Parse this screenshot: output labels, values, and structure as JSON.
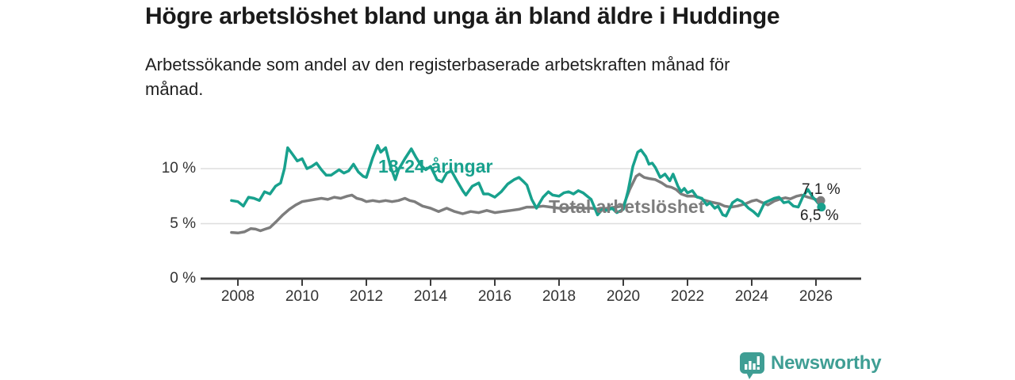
{
  "header": {
    "title": "Högre arbetslöshet bland unga än bland äldre i Huddinge",
    "subtitle": "Arbetssökande som andel av den registerbaserade arbetskraften månad för månad.",
    "subtitle_lines": [
      "Arbetssökande som andel av den registerbaserade arbetskraften månad för",
      "månad."
    ]
  },
  "chart_data": {
    "type": "line",
    "title": "Högre arbetslöshet bland unga än bland äldre i Huddinge",
    "subtitle": "Arbetssökande som andel av den registerbaserade arbetskraften månad för månad.",
    "xlabel": "",
    "ylabel": "",
    "grid": "horizontal",
    "legend_position": "inline-labels",
    "xlim": [
      2007.7,
      2026.6
    ],
    "ylim": [
      0,
      12.7
    ],
    "x_ticks": [
      2008,
      2010,
      2012,
      2014,
      2016,
      2018,
      2020,
      2022,
      2024,
      2026
    ],
    "y_ticks": [
      {
        "value": 0,
        "label": "0 %"
      },
      {
        "value": 5,
        "label": "5 %"
      },
      {
        "value": 10,
        "label": "10 %"
      }
    ],
    "colors": {
      "youth": "#18a18d",
      "total": "#7d7d7d",
      "grid": "#dedede",
      "axis": "#3c3c3c"
    },
    "series": [
      {
        "name": "18-24-åringar",
        "color": "#18a18d",
        "end_label": "6,5 %",
        "end_value": 6.5,
        "points": [
          [
            2007.8,
            7.1
          ],
          [
            2008,
            7.0
          ],
          [
            2008.17,
            6.6
          ],
          [
            2008.33,
            7.4
          ],
          [
            2008.5,
            7.3
          ],
          [
            2008.67,
            7.1
          ],
          [
            2008.83,
            7.9
          ],
          [
            2009,
            7.7
          ],
          [
            2009.17,
            8.4
          ],
          [
            2009.33,
            8.7
          ],
          [
            2009.45,
            10.0
          ],
          [
            2009.55,
            11.9
          ],
          [
            2009.7,
            11.3
          ],
          [
            2009.85,
            10.7
          ],
          [
            2010,
            10.9
          ],
          [
            2010.15,
            10.0
          ],
          [
            2010.3,
            10.2
          ],
          [
            2010.45,
            10.5
          ],
          [
            2010.6,
            9.9
          ],
          [
            2010.75,
            9.4
          ],
          [
            2010.9,
            9.4
          ],
          [
            2011,
            9.6
          ],
          [
            2011.15,
            9.9
          ],
          [
            2011.3,
            9.6
          ],
          [
            2011.45,
            9.8
          ],
          [
            2011.6,
            10.4
          ],
          [
            2011.75,
            9.7
          ],
          [
            2011.9,
            9.3
          ],
          [
            2012,
            9.2
          ],
          [
            2012.2,
            11.0
          ],
          [
            2012.35,
            12.1
          ],
          [
            2012.45,
            11.5
          ],
          [
            2012.6,
            11.9
          ],
          [
            2012.75,
            10.2
          ],
          [
            2012.9,
            9.0
          ],
          [
            2013,
            9.9
          ],
          [
            2013.2,
            10.9
          ],
          [
            2013.4,
            11.8
          ],
          [
            2013.55,
            11.0
          ],
          [
            2013.7,
            10.3
          ],
          [
            2013.85,
            9.9
          ],
          [
            2014,
            10.2
          ],
          [
            2014.2,
            9.0
          ],
          [
            2014.35,
            8.8
          ],
          [
            2014.5,
            9.6
          ],
          [
            2014.65,
            9.8
          ],
          [
            2014.8,
            9.0
          ],
          [
            2015,
            8.0
          ],
          [
            2015.1,
            7.6
          ],
          [
            2015.3,
            8.4
          ],
          [
            2015.5,
            8.7
          ],
          [
            2015.65,
            7.7
          ],
          [
            2015.8,
            7.7
          ],
          [
            2016,
            7.4
          ],
          [
            2016.2,
            7.9
          ],
          [
            2016.4,
            8.6
          ],
          [
            2016.6,
            9.0
          ],
          [
            2016.75,
            9.2
          ],
          [
            2016.9,
            8.8
          ],
          [
            2017,
            8.5
          ],
          [
            2017.15,
            7.2
          ],
          [
            2017.3,
            6.4
          ],
          [
            2017.5,
            7.4
          ],
          [
            2017.67,
            7.9
          ],
          [
            2017.8,
            7.6
          ],
          [
            2018,
            7.5
          ],
          [
            2018.15,
            7.8
          ],
          [
            2018.3,
            7.9
          ],
          [
            2018.45,
            7.7
          ],
          [
            2018.6,
            8.0
          ],
          [
            2018.75,
            7.8
          ],
          [
            2019,
            7.2
          ],
          [
            2019.2,
            5.8
          ],
          [
            2019.35,
            6.3
          ],
          [
            2019.5,
            6.2
          ],
          [
            2019.65,
            6.4
          ],
          [
            2019.8,
            6.0
          ],
          [
            2020,
            6.3
          ],
          [
            2020.15,
            8.0
          ],
          [
            2020.3,
            10.2
          ],
          [
            2020.45,
            11.5
          ],
          [
            2020.55,
            11.7
          ],
          [
            2020.7,
            11.1
          ],
          [
            2020.8,
            10.4
          ],
          [
            2020.9,
            10.5
          ],
          [
            2021,
            10.1
          ],
          [
            2021.15,
            9.2
          ],
          [
            2021.3,
            9.5
          ],
          [
            2021.45,
            8.9
          ],
          [
            2021.55,
            9.5
          ],
          [
            2021.7,
            8.4
          ],
          [
            2021.8,
            7.9
          ],
          [
            2021.9,
            8.2
          ],
          [
            2022,
            7.8
          ],
          [
            2022.15,
            8.0
          ],
          [
            2022.3,
            7.4
          ],
          [
            2022.45,
            7.3
          ],
          [
            2022.6,
            6.7
          ],
          [
            2022.7,
            6.9
          ],
          [
            2022.85,
            6.4
          ],
          [
            2022.95,
            6.6
          ],
          [
            2023.1,
            5.8
          ],
          [
            2023.2,
            5.7
          ],
          [
            2023.4,
            6.9
          ],
          [
            2023.55,
            7.2
          ],
          [
            2023.7,
            7.0
          ],
          [
            2023.9,
            6.4
          ],
          [
            2024.05,
            6.1
          ],
          [
            2024.2,
            5.7
          ],
          [
            2024.4,
            6.9
          ],
          [
            2024.55,
            7.1
          ],
          [
            2024.7,
            7.3
          ],
          [
            2024.85,
            7.4
          ],
          [
            2025,
            6.9
          ],
          [
            2025.15,
            7.0
          ],
          [
            2025.3,
            6.6
          ],
          [
            2025.45,
            6.5
          ],
          [
            2025.6,
            7.5
          ],
          [
            2025.75,
            8.1
          ],
          [
            2025.9,
            7.4
          ],
          [
            2026,
            7.1
          ],
          [
            2026.17,
            6.5
          ]
        ]
      },
      {
        "name": "Total arbetslöshet",
        "color": "#7d7d7d",
        "end_label": "7,1 %",
        "end_value": 7.1,
        "points": [
          [
            2007.8,
            4.2
          ],
          [
            2008,
            4.15
          ],
          [
            2008.2,
            4.25
          ],
          [
            2008.4,
            4.55
          ],
          [
            2008.55,
            4.5
          ],
          [
            2008.7,
            4.35
          ],
          [
            2008.85,
            4.5
          ],
          [
            2009,
            4.65
          ],
          [
            2009.2,
            5.2
          ],
          [
            2009.4,
            5.8
          ],
          [
            2009.6,
            6.3
          ],
          [
            2009.8,
            6.7
          ],
          [
            2010,
            7.0
          ],
          [
            2010.2,
            7.1
          ],
          [
            2010.4,
            7.2
          ],
          [
            2010.6,
            7.3
          ],
          [
            2010.8,
            7.2
          ],
          [
            2011,
            7.4
          ],
          [
            2011.2,
            7.3
          ],
          [
            2011.4,
            7.5
          ],
          [
            2011.55,
            7.6
          ],
          [
            2011.7,
            7.3
          ],
          [
            2011.85,
            7.2
          ],
          [
            2012,
            7.0
          ],
          [
            2012.2,
            7.1
          ],
          [
            2012.4,
            7.0
          ],
          [
            2012.6,
            7.1
          ],
          [
            2012.8,
            7.0
          ],
          [
            2013,
            7.1
          ],
          [
            2013.2,
            7.3
          ],
          [
            2013.35,
            7.1
          ],
          [
            2013.5,
            7.0
          ],
          [
            2013.75,
            6.6
          ],
          [
            2014,
            6.4
          ],
          [
            2014.25,
            6.1
          ],
          [
            2014.5,
            6.4
          ],
          [
            2014.75,
            6.1
          ],
          [
            2015,
            5.9
          ],
          [
            2015.25,
            6.1
          ],
          [
            2015.5,
            6.0
          ],
          [
            2015.75,
            6.2
          ],
          [
            2016,
            6.0
          ],
          [
            2016.25,
            6.1
          ],
          [
            2016.5,
            6.2
          ],
          [
            2016.75,
            6.3
          ],
          [
            2017,
            6.5
          ],
          [
            2017.25,
            6.5
          ],
          [
            2017.5,
            6.6
          ],
          [
            2017.75,
            6.5
          ],
          [
            2018,
            6.4
          ],
          [
            2018.25,
            6.4
          ],
          [
            2018.5,
            6.5
          ],
          [
            2018.75,
            6.4
          ],
          [
            2019,
            6.4
          ],
          [
            2019.25,
            6.3
          ],
          [
            2019.5,
            6.4
          ],
          [
            2019.75,
            6.5
          ],
          [
            2020,
            6.6
          ],
          [
            2020.2,
            8.1
          ],
          [
            2020.4,
            9.3
          ],
          [
            2020.5,
            9.5
          ],
          [
            2020.65,
            9.2
          ],
          [
            2020.8,
            9.1
          ],
          [
            2021,
            9.0
          ],
          [
            2021.2,
            8.7
          ],
          [
            2021.35,
            8.4
          ],
          [
            2021.5,
            8.3
          ],
          [
            2021.65,
            8.1
          ],
          [
            2021.8,
            7.7
          ],
          [
            2022,
            7.5
          ],
          [
            2022.2,
            7.5
          ],
          [
            2022.35,
            7.4
          ],
          [
            2022.5,
            7.15
          ],
          [
            2022.75,
            6.95
          ],
          [
            2023,
            6.8
          ],
          [
            2023.15,
            6.6
          ],
          [
            2023.35,
            6.5
          ],
          [
            2023.55,
            6.6
          ],
          [
            2023.8,
            6.8
          ],
          [
            2024,
            7.05
          ],
          [
            2024.15,
            7.15
          ],
          [
            2024.3,
            6.95
          ],
          [
            2024.5,
            6.7
          ],
          [
            2024.7,
            7.05
          ],
          [
            2024.9,
            7.25
          ],
          [
            2025.05,
            7.35
          ],
          [
            2025.2,
            7.25
          ],
          [
            2025.4,
            7.5
          ],
          [
            2025.55,
            7.6
          ],
          [
            2025.75,
            7.4
          ],
          [
            2026,
            7.2
          ],
          [
            2026.15,
            7.1
          ]
        ]
      }
    ]
  },
  "branding": {
    "name": "Newsworthy",
    "icon": "newsworthy-logo",
    "color": "#3f9e94"
  }
}
